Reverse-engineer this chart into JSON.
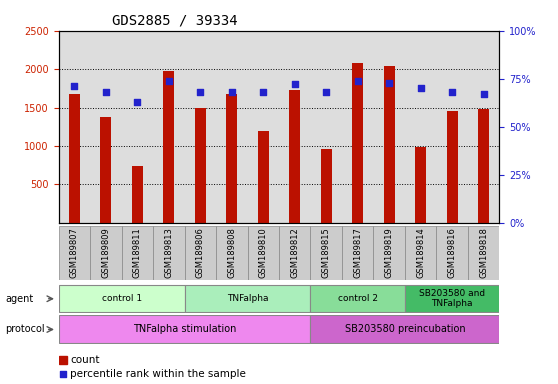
{
  "title": "GDS2885 / 39334",
  "samples": [
    "GSM189807",
    "GSM189809",
    "GSM189811",
    "GSM189813",
    "GSM189806",
    "GSM189808",
    "GSM189810",
    "GSM189812",
    "GSM189815",
    "GSM189817",
    "GSM189819",
    "GSM189814",
    "GSM189816",
    "GSM189818"
  ],
  "counts": [
    1680,
    1380,
    740,
    1970,
    1500,
    1680,
    1190,
    1730,
    960,
    2080,
    2040,
    980,
    1450,
    1480
  ],
  "percentiles": [
    71,
    68,
    63,
    74,
    68,
    68,
    68,
    72,
    68,
    74,
    73,
    70,
    68,
    67
  ],
  "ylim_left": [
    0,
    2500
  ],
  "ylim_right": [
    0,
    100
  ],
  "yticks_left": [
    500,
    1000,
    1500,
    2000,
    2500
  ],
  "yticks_right": [
    0,
    25,
    50,
    75,
    100
  ],
  "bar_color": "#bb1100",
  "dot_color": "#2222cc",
  "bar_width": 0.35,
  "agent_groups": [
    {
      "label": "control 1",
      "start": 0,
      "end": 3,
      "color": "#ccffcc"
    },
    {
      "label": "TNFalpha",
      "start": 4,
      "end": 7,
      "color": "#aaeebb"
    },
    {
      "label": "control 2",
      "start": 8,
      "end": 10,
      "color": "#88dd99"
    },
    {
      "label": "SB203580 and\nTNFalpha",
      "start": 11,
      "end": 13,
      "color": "#44bb66"
    }
  ],
  "protocol_groups": [
    {
      "label": "TNFalpha stimulation",
      "start": 0,
      "end": 7,
      "color": "#ee88ee"
    },
    {
      "label": "SB203580 preincubation",
      "start": 8,
      "end": 13,
      "color": "#cc66cc"
    }
  ],
  "left_axis_color": "#cc2200",
  "right_axis_color": "#2222cc",
  "background_color": "#ffffff",
  "plot_bg_color": "#dddddd",
  "grid_color": "#000000",
  "title_fontsize": 10,
  "tick_fontsize": 7,
  "sample_fontsize": 6,
  "legend_fontsize": 7.5
}
